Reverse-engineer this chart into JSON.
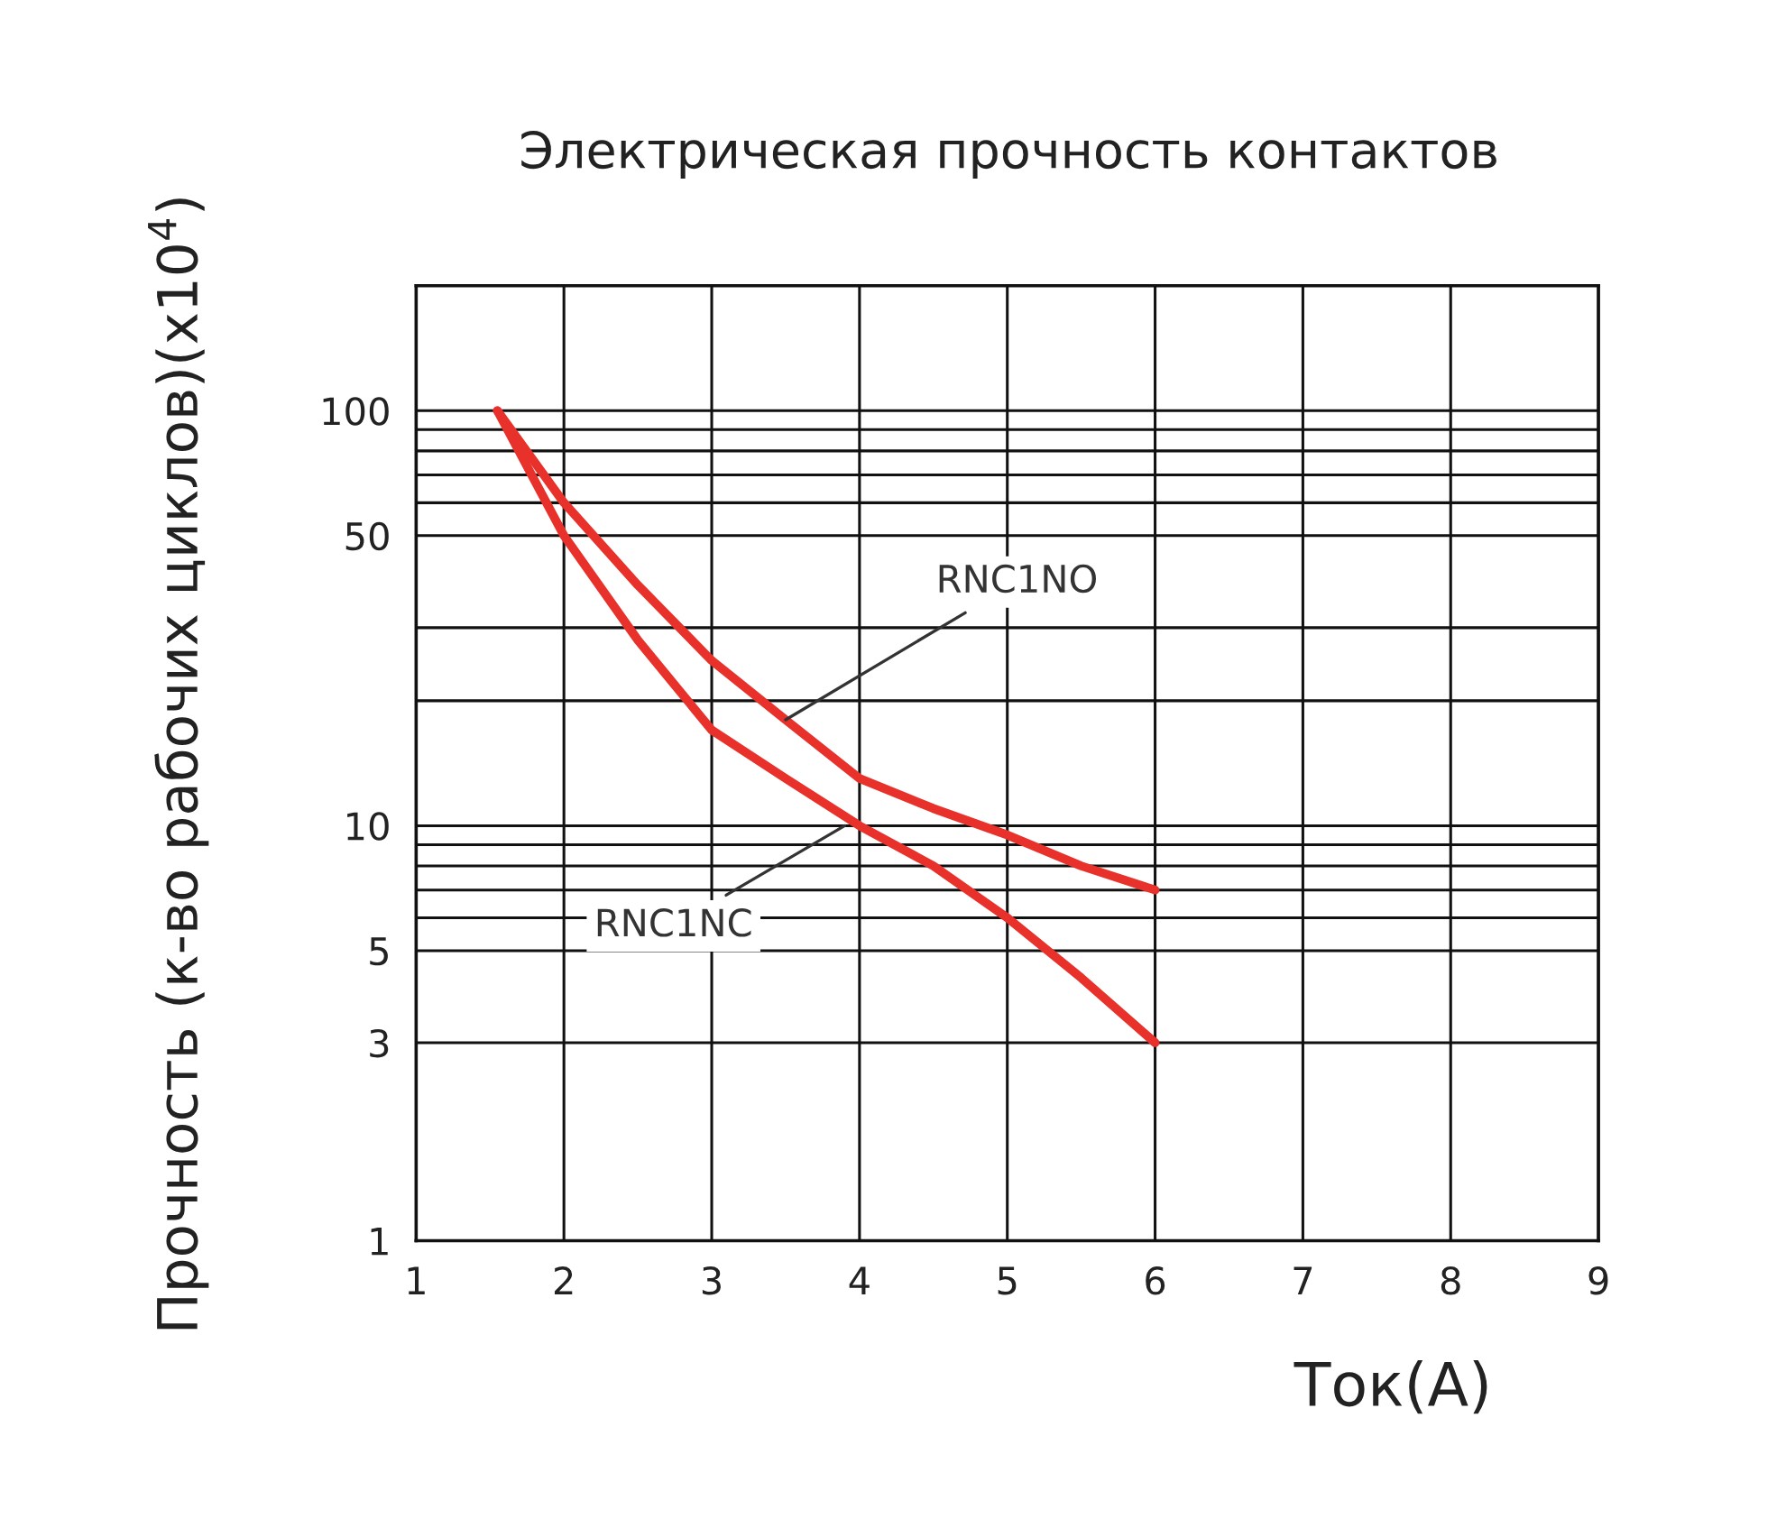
{
  "chart_data": {
    "type": "line",
    "title": "Электрическая прочность контактов",
    "xlabel": "Ток(A)",
    "ylabel": "Прочность (к-во рабочих циклов)(x10$^{4}$)",
    "log": "y",
    "grid": true,
    "xlim": [
      1,
      9
    ],
    "xticks": [
      1,
      2,
      3,
      4,
      5,
      6,
      7,
      8,
      9
    ],
    "ylim": [
      1,
      200
    ],
    "yticks": [
      1,
      3,
      5,
      {
        "value": 6,
        "label": null
      },
      {
        "value": 7,
        "label": null
      },
      {
        "value": 8,
        "label": null
      },
      {
        "value": 9,
        "label": null
      },
      10,
      {
        "value": 20,
        "label": null
      },
      {
        "value": 30,
        "label": null
      },
      50,
      {
        "value": 60,
        "label": null
      },
      {
        "value": 70,
        "label": null
      },
      {
        "value": 80,
        "label": null
      },
      {
        "value": 90,
        "label": null
      },
      100
    ],
    "series": [
      {
        "color": "#e8312a",
        "x": [
          1.55,
          2,
          2.5,
          3,
          3.5,
          4,
          4.5,
          5,
          5.5,
          6
        ],
        "values": [
          100,
          60,
          38,
          25,
          18,
          13,
          11,
          9.5,
          8,
          7
        ]
      },
      {
        "color": "#e8312a",
        "x": [
          1.55,
          2,
          2.5,
          3,
          3.5,
          4,
          4.5,
          5,
          5.5,
          6
        ],
        "values": [
          100,
          50,
          28,
          17,
          13,
          10,
          8,
          6,
          4.3,
          3
        ]
      }
    ],
    "annotations": [
      {
        "text": "RNC1NO",
        "x": 3.5,
        "y": 18
      },
      {
        "text": "RNC1NC",
        "x": 3.9,
        "y": 10
      }
    ]
  }
}
